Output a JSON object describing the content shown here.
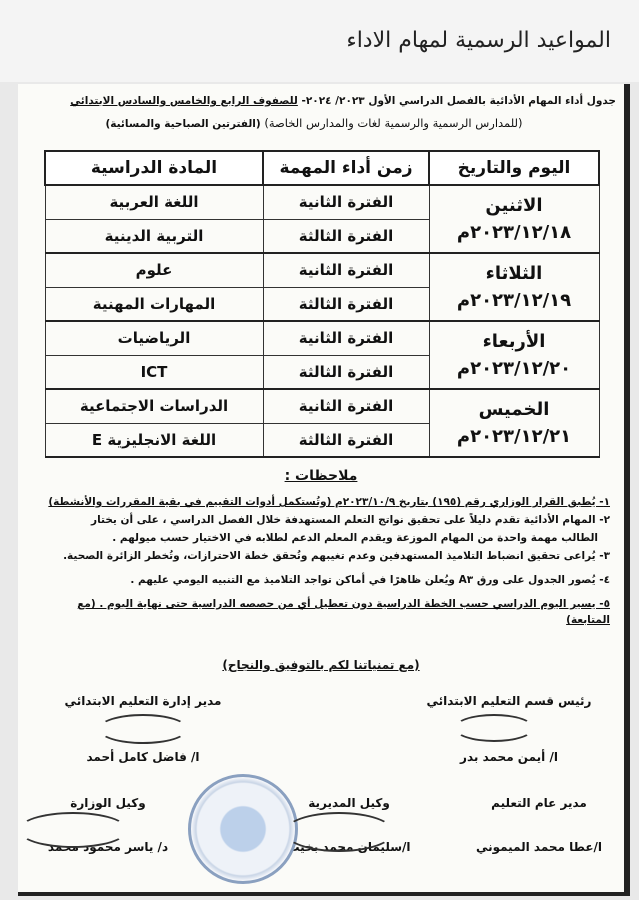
{
  "post_title": "المواعيد الرسمية لمهام الاداء",
  "document": {
    "heading_line1": "جدول أداء المهام الأدائية بالفصل الدراسي الأول ٢٠٢٣/ ٢٠٢٤- ",
    "heading_line1_underlined": "للصفوف الرابع والخامس والسادس الابتدائي",
    "heading_line2": "(للمدارس الرسمية والرسمية لغات والمدارس الخاصة)",
    "heading_line2_bold": "(الفترتين الصباحية والمسائية)",
    "table": {
      "headers": [
        "اليوم والتاريخ",
        "زمن أداء المهمة",
        "المادة الدراسية"
      ],
      "rows": [
        {
          "day": "الاثنين",
          "date": "٢٠٢٣/١٢/١٨م",
          "slots": [
            {
              "period": "الفترة الثانية",
              "subject": "اللغة العربية"
            },
            {
              "period": "الفترة الثالثة",
              "subject": "التربية الدينية"
            }
          ]
        },
        {
          "day": "الثلاثاء",
          "date": "٢٠٢٣/١٢/١٩م",
          "slots": [
            {
              "period": "الفترة الثانية",
              "subject": "علوم"
            },
            {
              "period": "الفترة الثالثة",
              "subject": "المهارات المهنية"
            }
          ]
        },
        {
          "day": "الأربعاء",
          "date": "٢٠٢٣/١٢/٢٠م",
          "slots": [
            {
              "period": "الفترة الثانية",
              "subject": "الرياضيات"
            },
            {
              "period": "الفترة الثالثة",
              "subject": "ICT"
            }
          ]
        },
        {
          "day": "الخميس",
          "date": "٢٠٢٣/١٢/٢١م",
          "slots": [
            {
              "period": "الفترة الثانية",
              "subject": "الدراسات الاجتماعية"
            },
            {
              "period": "الفترة الثالثة",
              "subject": "اللغة الانجليزية E"
            }
          ]
        }
      ]
    },
    "notes_title": "ملاحظات :",
    "notes": [
      "١- يُطبق القرار الوزاري رقم (١٩٥) بتاريخ ٢٠٢٣/١٠/٩م (وتُستكمل أدوات التقييم في بقية المقررات والأنشطة)",
      "٢- المهام الأدائية تقدم دليلاً على تحقيق نواتج التعلم المستهدفة خلال الفصل الدراسي ، على أن يختار",
      "الطالب مهمة واحدة من المهام الموزعة ويقدم المعلم الدعم لطلابه في الاختيار حسب ميولهم .",
      "٣- يُراعى تحقيق انضباط التلاميذ المستهدفين وعدم تغيبهم وتُحقق خطة الاحترازات، وتُخطر الزائرة الصحية.",
      "٤- يُصور الجدول على ورق A٣ ويُعلن ظاهرًا في أماكن تواجد التلاميذ مع التنبيه اليومي عليهم .",
      "٥- يسير اليوم الدراسي حسب الخطة الدراسية دون تعطيل أي من حصصه الدراسية حتى نهاية اليوم . (مع المتابعة)"
    ],
    "wish": "(مع تمنياتنا لكم بالتوفيق والنجاح)",
    "signatories": [
      {
        "title": "رئيس قسم التعليم الابتدائي",
        "name": "ا/ أيمن محمد بدر"
      },
      {
        "title": "مدير إدارة التعليم الابتدائي",
        "name": "ا/ فاضل كامل أحمد"
      },
      {
        "title": "مدير عام التعليم",
        "name": "ا/عطا محمد الميموني"
      },
      {
        "title": "وكيل المديرية",
        "name": "ا/سليمان محمد بخيت"
      },
      {
        "title": "وكيل الوزارة",
        "name": "د/ ياسر محمود محمد"
      }
    ]
  }
}
